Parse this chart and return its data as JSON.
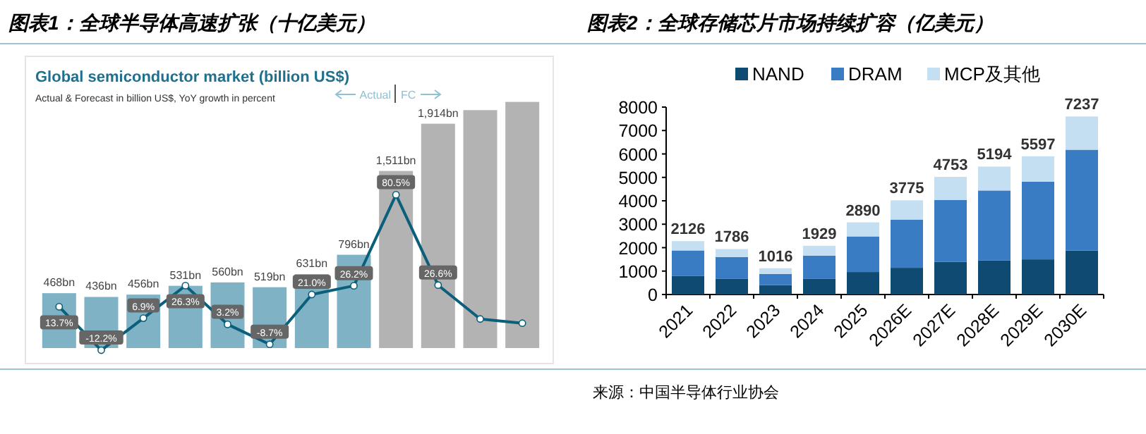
{
  "chart_data": [
    {
      "type": "bar",
      "title": "图表1：全球半导体高速扩张（十亿美元）",
      "subtitle": "Global semiconductor market (billion US$)",
      "annotations": [
        "Actual & Forecast in billion US$, YoY growth in percent",
        "Actual",
        "FC"
      ],
      "categories": [
        null,
        null,
        null,
        null,
        null,
        null,
        null,
        null,
        null,
        null,
        null,
        null
      ],
      "series": [
        {
          "colors": [
            "#7fb2c5",
            "#7fb2c5",
            "#7fb2c5",
            "#7fb2c5",
            "#7fb2c5",
            "#7fb2c5",
            "#7fb2c5",
            "#7fb2c5",
            "#b3b3b3",
            "#b3b3b3",
            "#b3b3b3",
            "#b3b3b3"
          ],
          "values": [
            468,
            436,
            456,
            531,
            560,
            519,
            631,
            796,
            1511,
            1914,
            2030,
            2100
          ],
          "value_labels": [
            "468bn",
            "436bn",
            "456bn",
            "531bn",
            "560bn",
            "519bn",
            "631bn",
            "796bn",
            "1,511bn",
            "1,914bn",
            null,
            null
          ]
        }
      ]
    },
    {
      "type": "line",
      "marker": "circle",
      "categories": [
        null,
        null,
        null,
        null,
        null,
        null,
        null,
        null,
        null,
        null,
        null,
        null
      ],
      "series": [
        {
          "color": "#0b5f7a",
          "values": [
            13.7,
            -12.2,
            6.9,
            26.3,
            3.2,
            -8.7,
            21.0,
            26.2,
            80.5,
            26.6,
            6.4,
            3.9
          ],
          "value_labels": [
            "13.7%",
            "-12.2%",
            "6.9%",
            "26.3%",
            "3.2%",
            "-8.7%",
            "21.0%",
            "26.2%",
            "80.5%",
            "26.6%",
            null,
            null
          ]
        }
      ]
    },
    {
      "type": "bar",
      "title": "图表2：全球存储芯片市场持续扩容（亿美元）",
      "annotations": [
        "来源：中国半导体行业协会",
        {
          "text": "2126",
          "x": "2021",
          "y": 2280
        },
        {
          "text": "1786",
          "x": "2022",
          "y": 1940
        },
        {
          "text": "1016",
          "x": "2023",
          "y": 1120
        },
        {
          "text": "1929",
          "x": "2024",
          "y": 2080
        },
        {
          "text": "2890",
          "x": "2025",
          "y": 3080
        },
        {
          "text": "3775",
          "x": "2026E",
          "y": 4020
        },
        {
          "text": "4753",
          "x": "2027E",
          "y": 5020
        },
        {
          "text": "5194",
          "x": "2028E",
          "y": 5460
        },
        {
          "text": "5597",
          "x": "2029E",
          "y": 5900
        },
        {
          "text": "7237",
          "x": "2030E",
          "y": 7600
        }
      ],
      "categories": [
        "2021",
        "2022",
        "2023",
        "2024",
        "2025",
        "2026E",
        "2027E",
        "2028E",
        "2029E",
        "2030E"
      ],
      "stacked": true,
      "legend": "top",
      "ylim": [
        0,
        8000
      ],
      "yticks": [
        0,
        1000,
        2000,
        3000,
        4000,
        5000,
        6000,
        7000,
        8000
      ],
      "series": [
        {
          "name": "NAND",
          "color": "#0e4a72",
          "values": [
            800,
            680,
            400,
            680,
            960,
            1140,
            1400,
            1460,
            1500,
            1880
          ]
        },
        {
          "name": "DRAM",
          "color": "#3a7cc4",
          "values": [
            1080,
            920,
            480,
            980,
            1520,
            2060,
            2640,
            2980,
            3320,
            4300
          ]
        },
        {
          "name": "MCP及其他",
          "color": "#c5dff2",
          "values": [
            400,
            340,
            240,
            420,
            600,
            820,
            980,
            1020,
            1080,
            1420
          ]
        }
      ]
    }
  ]
}
